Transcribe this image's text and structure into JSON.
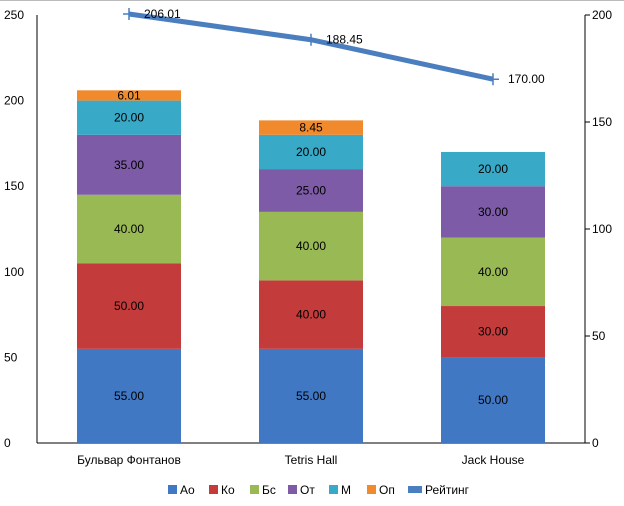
{
  "chart_data": {
    "type": "bar",
    "stacked": true,
    "categories": [
      "Бульвар Фонтанов",
      "Tetris Hall",
      "Jack House"
    ],
    "series": [
      {
        "name": "Ао",
        "color": "#4178c4",
        "values": [
          55,
          55,
          50
        ],
        "labels": [
          "55.00",
          "55.00",
          "50.00"
        ]
      },
      {
        "name": "Ко",
        "color": "#c33b3b",
        "values": [
          50,
          40,
          30
        ],
        "labels": [
          "50.00",
          "40.00",
          "30.00"
        ]
      },
      {
        "name": "Бс",
        "color": "#98b954",
        "values": [
          40,
          40,
          40
        ],
        "labels": [
          "40.00",
          "40.00",
          "40.00"
        ]
      },
      {
        "name": "От",
        "color": "#7d5ba6",
        "values": [
          35,
          25,
          30
        ],
        "labels": [
          "35.00",
          "25.00",
          "30.00"
        ]
      },
      {
        "name": "М",
        "color": "#38a9c6",
        "values": [
          20,
          20,
          20
        ],
        "labels": [
          "20.00",
          "20.00",
          "20.00"
        ]
      },
      {
        "name": "Оп",
        "color": "#f08a2c",
        "values": [
          6.01,
          8.45,
          0
        ],
        "labels": [
          "6.01",
          "8.45",
          ""
        ]
      }
    ],
    "line_series": {
      "name": "Рейтинг",
      "color": "#4a7ebf",
      "axis": "right",
      "values": [
        206.01,
        188.45,
        170.0
      ],
      "labels": [
        "206.01",
        "188.45",
        "170.00"
      ]
    },
    "y_left": {
      "range": [
        0,
        250
      ],
      "ticks": [
        "0",
        "50",
        "100",
        "150",
        "200",
        "250"
      ]
    },
    "y_right": {
      "range": [
        0,
        200
      ],
      "ticks": [
        "0",
        "50",
        "100",
        "150",
        "200"
      ]
    },
    "legend": "bottom",
    "grid": false
  }
}
